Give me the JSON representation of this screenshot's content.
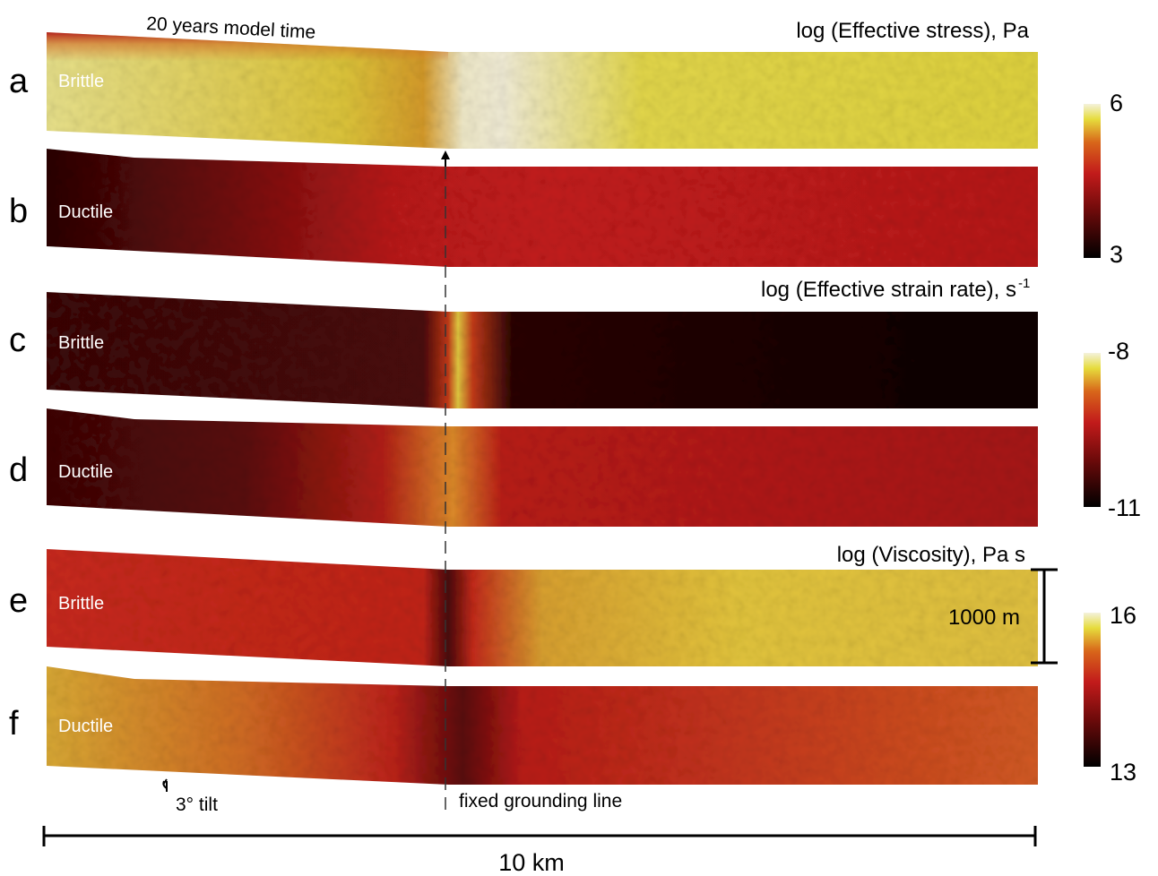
{
  "header": {
    "model_time": "20 years model time",
    "stress_title": "log (Effective stress), Pa",
    "strain_title": "log (Effective strain rate), s",
    "strain_title_sup": "-1",
    "viscosity_title": "log (Viscosity), Pa s"
  },
  "panels": [
    {
      "letter": "a",
      "label": "Brittle"
    },
    {
      "letter": "b",
      "label": "Ductile"
    },
    {
      "letter": "c",
      "label": "Brittle"
    },
    {
      "letter": "d",
      "label": "Ductile"
    },
    {
      "letter": "e",
      "label": "Brittle"
    },
    {
      "letter": "f",
      "label": "Ductile"
    }
  ],
  "colorbars": [
    {
      "max": "6",
      "min": "3"
    },
    {
      "max": "-8",
      "min": "-11"
    },
    {
      "max": "16",
      "min": "13"
    }
  ],
  "annotations": {
    "grounding_line": "fixed grounding line",
    "tilt": "3° tilt",
    "vertical_scale": "1000 m",
    "horizontal_scale": "10 km"
  },
  "colors": {
    "black": "#000000",
    "dark_red": "#6b0a0a",
    "red": "#c21b1b",
    "orange": "#d8661a",
    "yellow": "#e6dc3c",
    "pale": "#f2efd0",
    "white": "#ffffff"
  }
}
